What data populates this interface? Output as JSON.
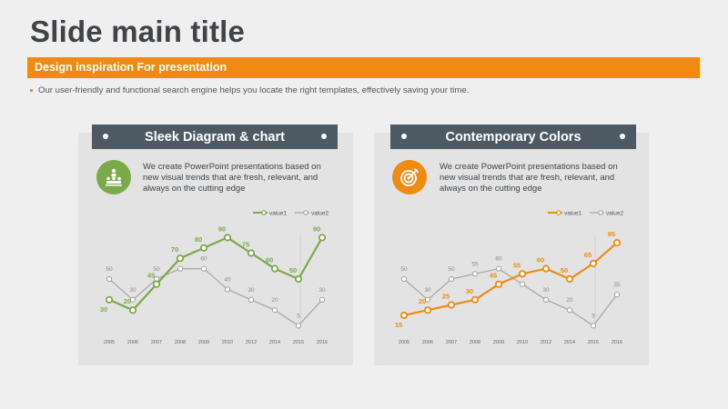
{
  "slide": {
    "title": "Slide main title",
    "banner": "Design inspiration For presentation",
    "bullet": "Our user-friendly and functional search engine helps you locate the right templates, effectively saving your time."
  },
  "cards": [
    {
      "header": "Sleek Diagram & chart",
      "text": "We create PowerPoint presentations based on new visual trends that are fresh, relevant, and always on the cutting edge",
      "icon": "people-pyramid-icon",
      "accent": "#7ca94a"
    },
    {
      "header": "Contemporary Colors",
      "text": "We create PowerPoint presentations based on new visual trends that are fresh, relevant, and always on the cutting edge",
      "icon": "target-dart-icon",
      "accent": "#ef8a12"
    }
  ],
  "chart_data": [
    {
      "type": "line",
      "categories": [
        "2005",
        "2006",
        "2007",
        "2008",
        "2009",
        "2010",
        "2012",
        "2014",
        "2015",
        "2016"
      ],
      "series": [
        {
          "name": "value1",
          "color": "#7ca94a",
          "values": [
            30,
            20,
            45,
            70,
            80,
            90,
            75,
            60,
            50,
            90
          ]
        },
        {
          "name": "value2",
          "color": "#a6a6a6",
          "values": [
            50,
            30,
            50,
            60,
            60,
            40,
            30,
            20,
            5,
            30
          ]
        }
      ],
      "ylim": [
        0,
        100
      ],
      "legend": "top-right"
    },
    {
      "type": "line",
      "categories": [
        "2005",
        "2006",
        "2007",
        "2008",
        "2009",
        "2010",
        "2012",
        "2014",
        "2015",
        "2016"
      ],
      "series": [
        {
          "name": "value1",
          "color": "#ef8a12",
          "values": [
            15,
            20,
            25,
            30,
            45,
            55,
            60,
            50,
            65,
            85
          ]
        },
        {
          "name": "value2",
          "color": "#a6a6a6",
          "values": [
            50,
            30,
            50,
            55,
            60,
            45,
            30,
            20,
            5,
            35
          ]
        }
      ],
      "ylim": [
        0,
        100
      ],
      "legend": "top-right"
    }
  ]
}
